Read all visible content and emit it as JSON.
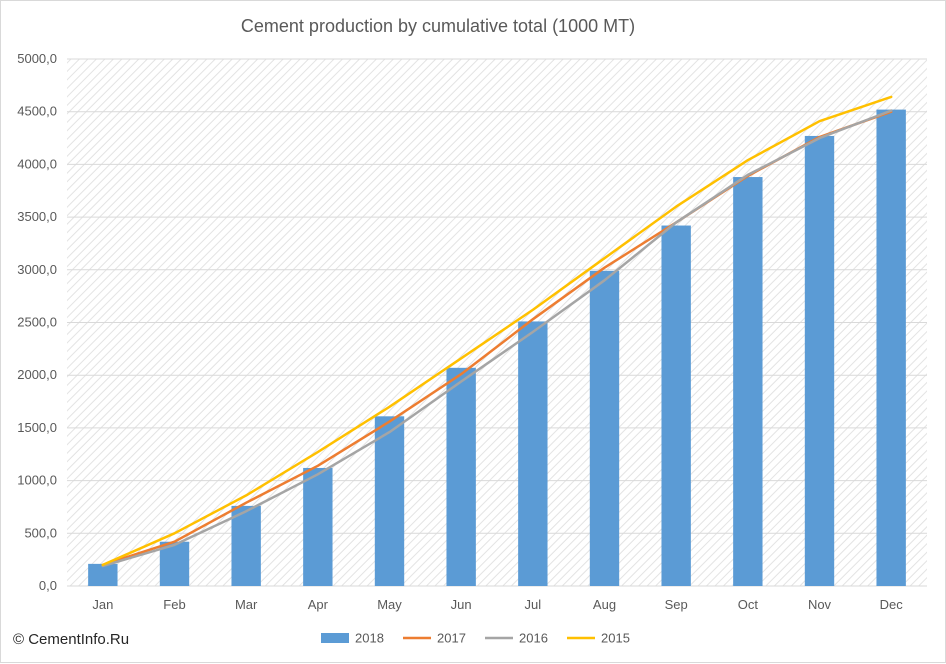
{
  "chart_data": {
    "type": "bar",
    "title": "Cement production by cumulative total (1000 MT)",
    "categories": [
      "Jan",
      "Feb",
      "Mar",
      "Apr",
      "May",
      "Jun",
      "Jul",
      "Aug",
      "Sep",
      "Oct",
      "Nov",
      "Dec"
    ],
    "ylim": [
      0,
      5000
    ],
    "y_ticks": [
      "0,0",
      "500,0",
      "1000,0",
      "1500,0",
      "2000,0",
      "2500,0",
      "3000,0",
      "3500,0",
      "4000,0",
      "4500,0",
      "5000,0"
    ],
    "y_tick_values": [
      0,
      500,
      1000,
      1500,
      2000,
      2500,
      3000,
      3500,
      4000,
      4500,
      5000
    ],
    "grid": true,
    "legend_position": "bottom",
    "series": [
      {
        "name": "2018",
        "kind": "bar",
        "color": "#5B9BD5",
        "values": [
          210,
          420,
          760,
          1120,
          1610,
          2070,
          2510,
          2990,
          3420,
          3880,
          4270,
          4520
        ]
      },
      {
        "name": "2017",
        "kind": "line",
        "color": "#ED7D31",
        "values": [
          200,
          420,
          790,
          1140,
          1560,
          2010,
          2530,
          3020,
          3450,
          3890,
          4260,
          4500
        ]
      },
      {
        "name": "2016",
        "kind": "line",
        "color": "#A5A5A5",
        "values": [
          190,
          390,
          710,
          1060,
          1460,
          1940,
          2410,
          2900,
          3450,
          3900,
          4250,
          4510
        ]
      },
      {
        "name": "2015",
        "kind": "line",
        "color": "#FFC000",
        "values": [
          200,
          500,
          860,
          1270,
          1700,
          2160,
          2620,
          3110,
          3600,
          4040,
          4410,
          4640
        ]
      }
    ]
  },
  "credit": "© CementInfo.Ru"
}
